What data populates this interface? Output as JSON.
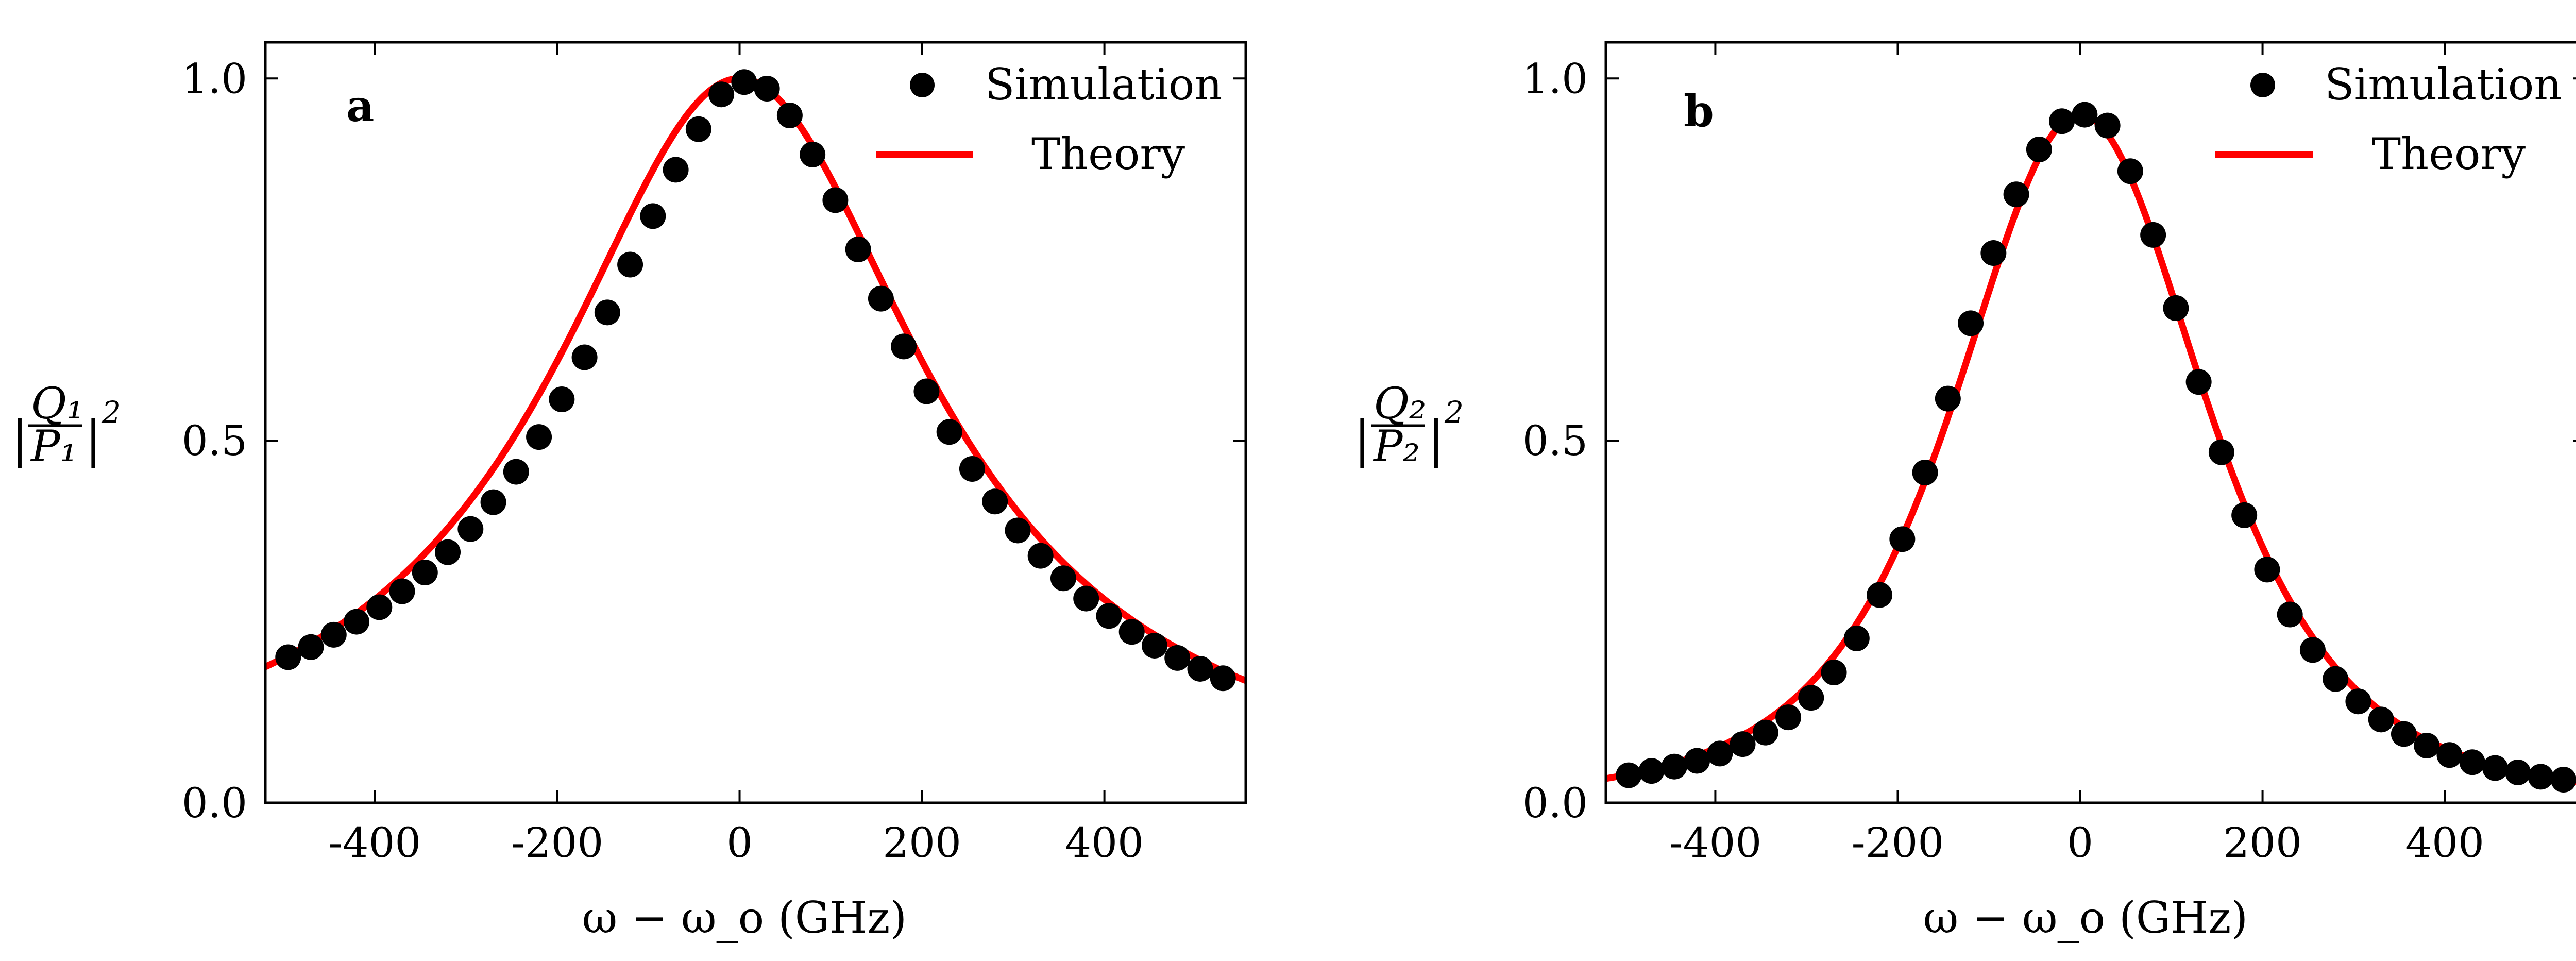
{
  "figure": {
    "colors": {
      "simulation": "#000000",
      "theory": "#ff0000",
      "frame": "#000000"
    }
  },
  "chart_data": [
    {
      "panel": "a",
      "type": "line",
      "title": "",
      "xlabel": "ω − ω_o (GHz)",
      "ylabel": {
        "numerator": "Q₁",
        "denominator": "P₁",
        "power": "2"
      },
      "xlim": [
        -520,
        555
      ],
      "ylim": [
        0,
        1.05
      ],
      "xticks": [
        -400,
        -200,
        0,
        200,
        400
      ],
      "xtick_labels": [
        "-400",
        "-200",
        "0",
        "200",
        "400"
      ],
      "yticks": [
        0,
        0.5,
        1
      ],
      "ytick_labels": [
        "0.0",
        "0.5",
        "1.0"
      ],
      "legend": {
        "position": "top-right",
        "entries": [
          "Simulation",
          "Theory"
        ]
      },
      "series": [
        {
          "name": "Simulation",
          "kind": "scatter",
          "x": [
            -495,
            -470,
            -445,
            -420,
            -395,
            -370,
            -345,
            -320,
            -295,
            -270,
            -245,
            -220,
            -195,
            -170,
            -145,
            -120,
            -95,
            -70,
            -45,
            -20,
            5,
            30,
            55,
            80,
            105,
            130,
            155,
            180,
            205,
            230,
            255,
            280,
            305,
            330,
            355,
            380,
            405,
            430,
            455,
            480,
            505,
            530
          ],
          "y": [
            0.201,
            0.215,
            0.232,
            0.25,
            0.27,
            0.292,
            0.318,
            0.346,
            0.378,
            0.415,
            0.457,
            0.505,
            0.557,
            0.615,
            0.677,
            0.743,
            0.81,
            0.874,
            0.93,
            0.978,
            0.995,
            0.986,
            0.949,
            0.895,
            0.832,
            0.764,
            0.696,
            0.63,
            0.568,
            0.512,
            0.461,
            0.416,
            0.376,
            0.341,
            0.31,
            0.282,
            0.258,
            0.236,
            0.217,
            0.2,
            0.185,
            0.172
          ]
        },
        {
          "name": "Theory",
          "kind": "line",
          "model": "lorentzian",
          "params": {
            "amplitude": 1.0,
            "center": 0,
            "halfwidth": 250
          },
          "range": [
            -520,
            555
          ]
        }
      ]
    },
    {
      "panel": "b",
      "type": "line",
      "title": "",
      "xlabel": "ω − ω_o (GHz)",
      "ylabel": {
        "numerator": "Q₂",
        "denominator": "P₂",
        "power": "2"
      },
      "xlim": [
        -520,
        555
      ],
      "ylim": [
        0,
        1.05
      ],
      "xticks": [
        -400,
        -200,
        0,
        200,
        400
      ],
      "xtick_labels": [
        "-400",
        "-200",
        "0",
        "200",
        "400"
      ],
      "yticks": [
        0,
        0.5,
        1
      ],
      "ytick_labels": [
        "0.0",
        "0.5",
        "1.0"
      ],
      "legend": {
        "position": "top-right",
        "entries": [
          "Simulation",
          "Theory"
        ]
      },
      "series": [
        {
          "name": "Simulation",
          "kind": "scatter",
          "x": [
            -495,
            -470,
            -445,
            -420,
            -395,
            -370,
            -345,
            -320,
            -295,
            -270,
            -245,
            -220,
            -195,
            -170,
            -145,
            -120,
            -95,
            -70,
            -45,
            -20,
            5,
            30,
            55,
            80,
            105,
            130,
            155,
            180,
            205,
            230,
            255,
            280,
            305,
            330,
            355,
            380,
            405,
            430,
            455,
            480,
            505,
            530
          ],
          "y": [
            0.038,
            0.044,
            0.05,
            0.058,
            0.068,
            0.081,
            0.097,
            0.118,
            0.145,
            0.18,
            0.227,
            0.287,
            0.364,
            0.456,
            0.558,
            0.662,
            0.759,
            0.84,
            0.902,
            0.941,
            0.95,
            0.935,
            0.872,
            0.784,
            0.683,
            0.581,
            0.484,
            0.397,
            0.322,
            0.26,
            0.211,
            0.171,
            0.14,
            0.115,
            0.095,
            0.079,
            0.066,
            0.056,
            0.048,
            0.042,
            0.036,
            0.032
          ]
        },
        {
          "name": "Theory",
          "kind": "line",
          "model": "lorentzian-squared",
          "params": {
            "amplitude": 0.95,
            "center": 0,
            "halfwidth": 250
          },
          "range": [
            -520,
            555
          ]
        }
      ]
    }
  ]
}
